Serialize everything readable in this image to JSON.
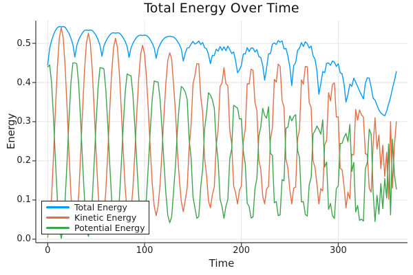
{
  "figure": {
    "background": "#ffffff"
  },
  "colors": {
    "grid": "#e2e2e2",
    "axis": "#383838",
    "text": "#1d1d1d"
  },
  "chart_data": {
    "type": "line",
    "title": "Total Energy Over Time",
    "xlabel": "Time",
    "ylabel": "Energy",
    "xlim": [
      -12.3,
      371.5
    ],
    "ylim": [
      -0.009,
      0.558
    ],
    "grid": true,
    "legend_position": "bottom-left",
    "x_ticks": {
      "values": [
        0,
        100,
        200,
        300
      ],
      "labels": [
        "0",
        "100",
        "200",
        "300"
      ]
    },
    "y_ticks": {
      "values": [
        0,
        0.1,
        0.2,
        0.3,
        0.4,
        0.5
      ],
      "labels": [
        "0.0",
        "0.1",
        "0.2",
        "0.3",
        "0.4",
        "0.5"
      ]
    },
    "x": {
      "start": 0,
      "step": 2,
      "count": 181
    },
    "series": [
      {
        "name": "Total Energy",
        "color": "#009af9",
        "values": [
          0.445,
          0.487,
          0.507,
          0.522,
          0.533,
          0.54,
          0.543,
          0.542,
          0.543,
          0.541,
          0.534,
          0.525,
          0.513,
          0.497,
          0.465,
          0.494,
          0.509,
          0.519,
          0.527,
          0.533,
          0.534,
          0.533,
          0.534,
          0.533,
          0.527,
          0.52,
          0.509,
          0.495,
          0.467,
          0.493,
          0.505,
          0.514,
          0.521,
          0.526,
          0.527,
          0.526,
          0.527,
          0.526,
          0.521,
          0.514,
          0.505,
          0.492,
          0.464,
          0.488,
          0.5,
          0.509,
          0.516,
          0.52,
          0.521,
          0.52,
          0.521,
          0.52,
          0.516,
          0.509,
          0.5,
          0.488,
          0.462,
          0.486,
          0.497,
          0.506,
          0.512,
          0.516,
          0.517,
          0.518,
          0.517,
          0.516,
          0.512,
          0.505,
          0.497,
          0.485,
          0.455,
          0.475,
          0.488,
          0.489,
          0.498,
          0.505,
          0.498,
          0.501,
          0.506,
          0.497,
          0.502,
          0.489,
          0.486,
          0.472,
          0.448,
          0.469,
          0.469,
          0.485,
          0.48,
          0.492,
          0.482,
          0.491,
          0.481,
          0.493,
          0.484,
          0.474,
          0.478,
          0.456,
          0.425,
          0.432,
          0.444,
          0.473,
          0.473,
          0.489,
          0.479,
          0.488,
          0.488,
          0.478,
          0.484,
          0.466,
          0.464,
          0.444,
          0.406,
          0.437,
          0.473,
          0.474,
          0.498,
          0.501,
          0.497,
          0.507,
          0.503,
          0.506,
          0.486,
          0.487,
          0.468,
          0.44,
          0.392,
          0.443,
          0.451,
          0.482,
          0.488,
          0.502,
          0.492,
          0.504,
          0.499,
          0.488,
          0.493,
          0.468,
          0.46,
          0.429,
          0.37,
          0.397,
          0.428,
          0.425,
          0.449,
          0.45,
          0.444,
          0.455,
          0.452,
          0.441,
          0.448,
          0.425,
          0.422,
          0.395,
          0.35,
          0.369,
          0.396,
          0.39,
          0.411,
          0.401,
          0.39,
          0.378,
          0.368,
          0.358,
          0.398,
          0.412,
          0.411,
          0.388,
          0.36,
          0.355,
          0.342,
          0.33,
          0.322,
          0.318,
          0.315,
          0.327,
          0.345,
          0.362,
          0.385,
          0.405,
          0.428
        ]
      },
      {
        "name": "Kinetic Energy",
        "color": "#e26e46",
        "values": [
          0.005,
          0.042,
          0.107,
          0.214,
          0.333,
          0.44,
          0.514,
          0.54,
          0.514,
          0.441,
          0.335,
          0.218,
          0.113,
          0.047,
          0.015,
          0.046,
          0.113,
          0.216,
          0.329,
          0.431,
          0.501,
          0.526,
          0.501,
          0.432,
          0.331,
          0.221,
          0.122,
          0.057,
          0.03,
          0.058,
          0.123,
          0.22,
          0.327,
          0.423,
          0.489,
          0.513,
          0.489,
          0.424,
          0.329,
          0.225,
          0.131,
          0.07,
          0.045,
          0.071,
          0.131,
          0.222,
          0.322,
          0.411,
          0.473,
          0.495,
          0.473,
          0.412,
          0.324,
          0.227,
          0.14,
          0.084,
          0.06,
          0.085,
          0.139,
          0.223,
          0.315,
          0.398,
          0.456,
          0.476,
          0.46,
          0.393,
          0.322,
          0.222,
          0.15,
          0.095,
          0.07,
          0.099,
          0.131,
          0.233,
          0.289,
          0.396,
          0.418,
          0.448,
          0.448,
          0.364,
          0.324,
          0.207,
          0.164,
          0.098,
          0.08,
          0.113,
          0.134,
          0.238,
          0.281,
          0.39,
          0.399,
          0.438,
          0.397,
          0.392,
          0.278,
          0.243,
          0.136,
          0.118,
          0.09,
          0.125,
          0.136,
          0.249,
          0.281,
          0.397,
          0.396,
          0.434,
          0.431,
          0.349,
          0.329,
          0.202,
          0.178,
          0.11,
          0.09,
          0.128,
          0.135,
          0.255,
          0.284,
          0.408,
          0.401,
          0.447,
          0.441,
          0.354,
          0.337,
          0.204,
          0.182,
          0.125,
          0.09,
          0.13,
          0.133,
          0.255,
          0.28,
          0.407,
          0.396,
          0.441,
          0.44,
          0.349,
          0.336,
          0.2,
          0.183,
          0.14,
          0.09,
          0.129,
          0.123,
          0.241,
          0.252,
          0.374,
          0.353,
          0.395,
          0.399,
          0.312,
          0.312,
          0.181,
          0.177,
          0.135,
          0.08,
          0.12,
          0.103,
          0.217,
          0.215,
          0.331,
          0.304,
          0.33,
          0.317,
          0.312,
          0.218,
          0.216,
          0.13,
          0.12,
          0.24,
          0.31,
          0.23,
          0.266,
          0.18,
          0.24,
          0.16,
          0.222,
          0.102,
          0.3,
          0.13,
          0.24,
          0.3
        ]
      },
      {
        "name": "Potential Energy",
        "color": "#3da44e",
        "values": [
          0.44,
          0.445,
          0.4,
          0.308,
          0.2,
          0.1,
          0.029,
          0.002,
          0.029,
          0.1,
          0.199,
          0.307,
          0.4,
          0.45,
          0.45,
          0.448,
          0.396,
          0.303,
          0.198,
          0.102,
          0.033,
          0.007,
          0.033,
          0.101,
          0.196,
          0.299,
          0.387,
          0.438,
          0.437,
          0.435,
          0.382,
          0.294,
          0.194,
          0.103,
          0.038,
          0.013,
          0.038,
          0.102,
          0.192,
          0.289,
          0.374,
          0.422,
          0.419,
          0.417,
          0.369,
          0.287,
          0.194,
          0.109,
          0.048,
          0.025,
          0.048,
          0.108,
          0.192,
          0.282,
          0.36,
          0.404,
          0.402,
          0.401,
          0.358,
          0.283,
          0.197,
          0.118,
          0.061,
          0.042,
          0.057,
          0.123,
          0.19,
          0.283,
          0.347,
          0.39,
          0.385,
          0.376,
          0.357,
          0.256,
          0.209,
          0.109,
          0.08,
          0.053,
          0.058,
          0.133,
          0.178,
          0.282,
          0.322,
          0.374,
          0.368,
          0.356,
          0.335,
          0.247,
          0.199,
          0.102,
          0.083,
          0.053,
          0.084,
          0.101,
          0.206,
          0.231,
          0.342,
          0.338,
          0.335,
          0.307,
          0.308,
          0.224,
          0.192,
          0.092,
          0.083,
          0.054,
          0.057,
          0.129,
          0.155,
          0.264,
          0.286,
          0.334,
          0.316,
          0.309,
          0.338,
          0.219,
          0.214,
          0.093,
          0.096,
          0.06,
          0.062,
          0.152,
          0.149,
          0.283,
          0.286,
          0.315,
          0.302,
          0.313,
          0.318,
          0.227,
          0.208,
          0.095,
          0.096,
          0.063,
          0.059,
          0.139,
          0.157,
          0.268,
          0.277,
          0.289,
          0.28,
          0.268,
          0.305,
          0.184,
          0.197,
          0.076,
          0.091,
          0.06,
          0.053,
          0.129,
          0.136,
          0.244,
          0.245,
          0.26,
          0.27,
          0.249,
          0.293,
          0.173,
          0.196,
          0.07,
          0.086,
          0.048,
          0.051,
          0.046,
          0.18,
          0.196,
          0.281,
          0.268,
          0.12,
          0.045,
          0.112,
          0.064,
          0.142,
          0.078,
          0.155,
          0.105,
          0.243,
          0.062,
          0.255,
          0.165,
          0.128
        ]
      }
    ]
  }
}
